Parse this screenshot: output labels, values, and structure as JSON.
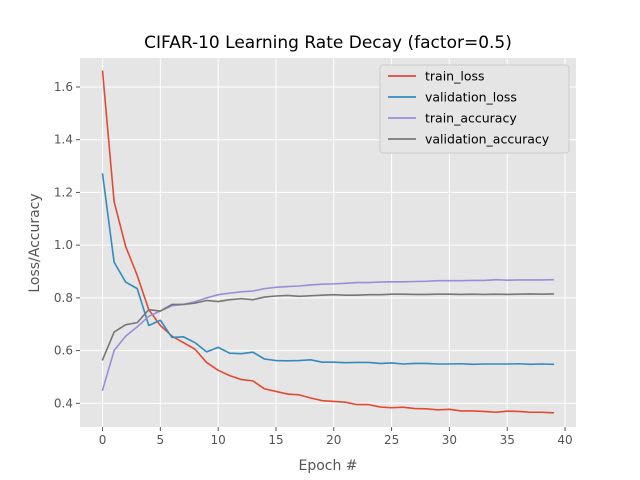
{
  "chart_data": {
    "type": "line",
    "title": "CIFAR-10 Learning Rate Decay (factor=0.5)",
    "xlabel": "Epoch #",
    "ylabel": "Loss/Accuracy",
    "xlim": [
      -1.95,
      40.95
    ],
    "ylim": [
      0.31,
      1.71
    ],
    "x_ticks": [
      0,
      5,
      10,
      15,
      20,
      25,
      30,
      35,
      40
    ],
    "y_ticks": [
      0.4,
      0.6,
      0.8,
      1.0,
      1.2,
      1.4,
      1.6
    ],
    "grid": true,
    "legend_position": "top-right",
    "x": [
      0,
      1,
      2,
      3,
      4,
      5,
      6,
      7,
      8,
      9,
      10,
      11,
      12,
      13,
      14,
      15,
      16,
      17,
      18,
      19,
      20,
      21,
      22,
      23,
      24,
      25,
      26,
      27,
      28,
      29,
      30,
      31,
      32,
      33,
      34,
      35,
      36,
      37,
      38,
      39
    ],
    "series": [
      {
        "name": "train_loss",
        "color": "#E24A33",
        "values": [
          1.66,
          1.165,
          0.995,
          0.885,
          0.755,
          0.695,
          0.655,
          0.63,
          0.605,
          0.555,
          0.525,
          0.505,
          0.49,
          0.485,
          0.455,
          0.445,
          0.435,
          0.432,
          0.42,
          0.41,
          0.407,
          0.404,
          0.395,
          0.395,
          0.386,
          0.383,
          0.385,
          0.38,
          0.379,
          0.375,
          0.377,
          0.371,
          0.371,
          0.369,
          0.366,
          0.37,
          0.369,
          0.366,
          0.366,
          0.364
        ]
      },
      {
        "name": "validation_loss",
        "color": "#348ABD",
        "values": [
          1.27,
          0.935,
          0.86,
          0.835,
          0.695,
          0.715,
          0.65,
          0.652,
          0.63,
          0.595,
          0.612,
          0.59,
          0.588,
          0.594,
          0.568,
          0.562,
          0.561,
          0.562,
          0.565,
          0.556,
          0.556,
          0.554,
          0.555,
          0.555,
          0.551,
          0.553,
          0.549,
          0.551,
          0.551,
          0.549,
          0.549,
          0.55,
          0.548,
          0.549,
          0.549,
          0.549,
          0.55,
          0.548,
          0.549,
          0.548
        ]
      },
      {
        "name": "train_accuracy",
        "color": "#988ED5",
        "values": [
          0.45,
          0.6,
          0.655,
          0.69,
          0.73,
          0.75,
          0.77,
          0.775,
          0.785,
          0.8,
          0.812,
          0.818,
          0.823,
          0.826,
          0.835,
          0.84,
          0.843,
          0.845,
          0.849,
          0.852,
          0.853,
          0.855,
          0.858,
          0.858,
          0.86,
          0.861,
          0.861,
          0.862,
          0.863,
          0.865,
          0.865,
          0.865,
          0.866,
          0.866,
          0.869,
          0.867,
          0.868,
          0.868,
          0.868,
          0.869
        ]
      },
      {
        "name": "validation_accuracy",
        "color": "#777777",
        "values": [
          0.565,
          0.67,
          0.698,
          0.706,
          0.755,
          0.75,
          0.775,
          0.775,
          0.78,
          0.79,
          0.786,
          0.793,
          0.797,
          0.793,
          0.803,
          0.807,
          0.809,
          0.806,
          0.808,
          0.81,
          0.812,
          0.81,
          0.81,
          0.812,
          0.812,
          0.814,
          0.814,
          0.813,
          0.813,
          0.814,
          0.814,
          0.813,
          0.814,
          0.813,
          0.814,
          0.813,
          0.814,
          0.815,
          0.814,
          0.815
        ]
      }
    ]
  }
}
